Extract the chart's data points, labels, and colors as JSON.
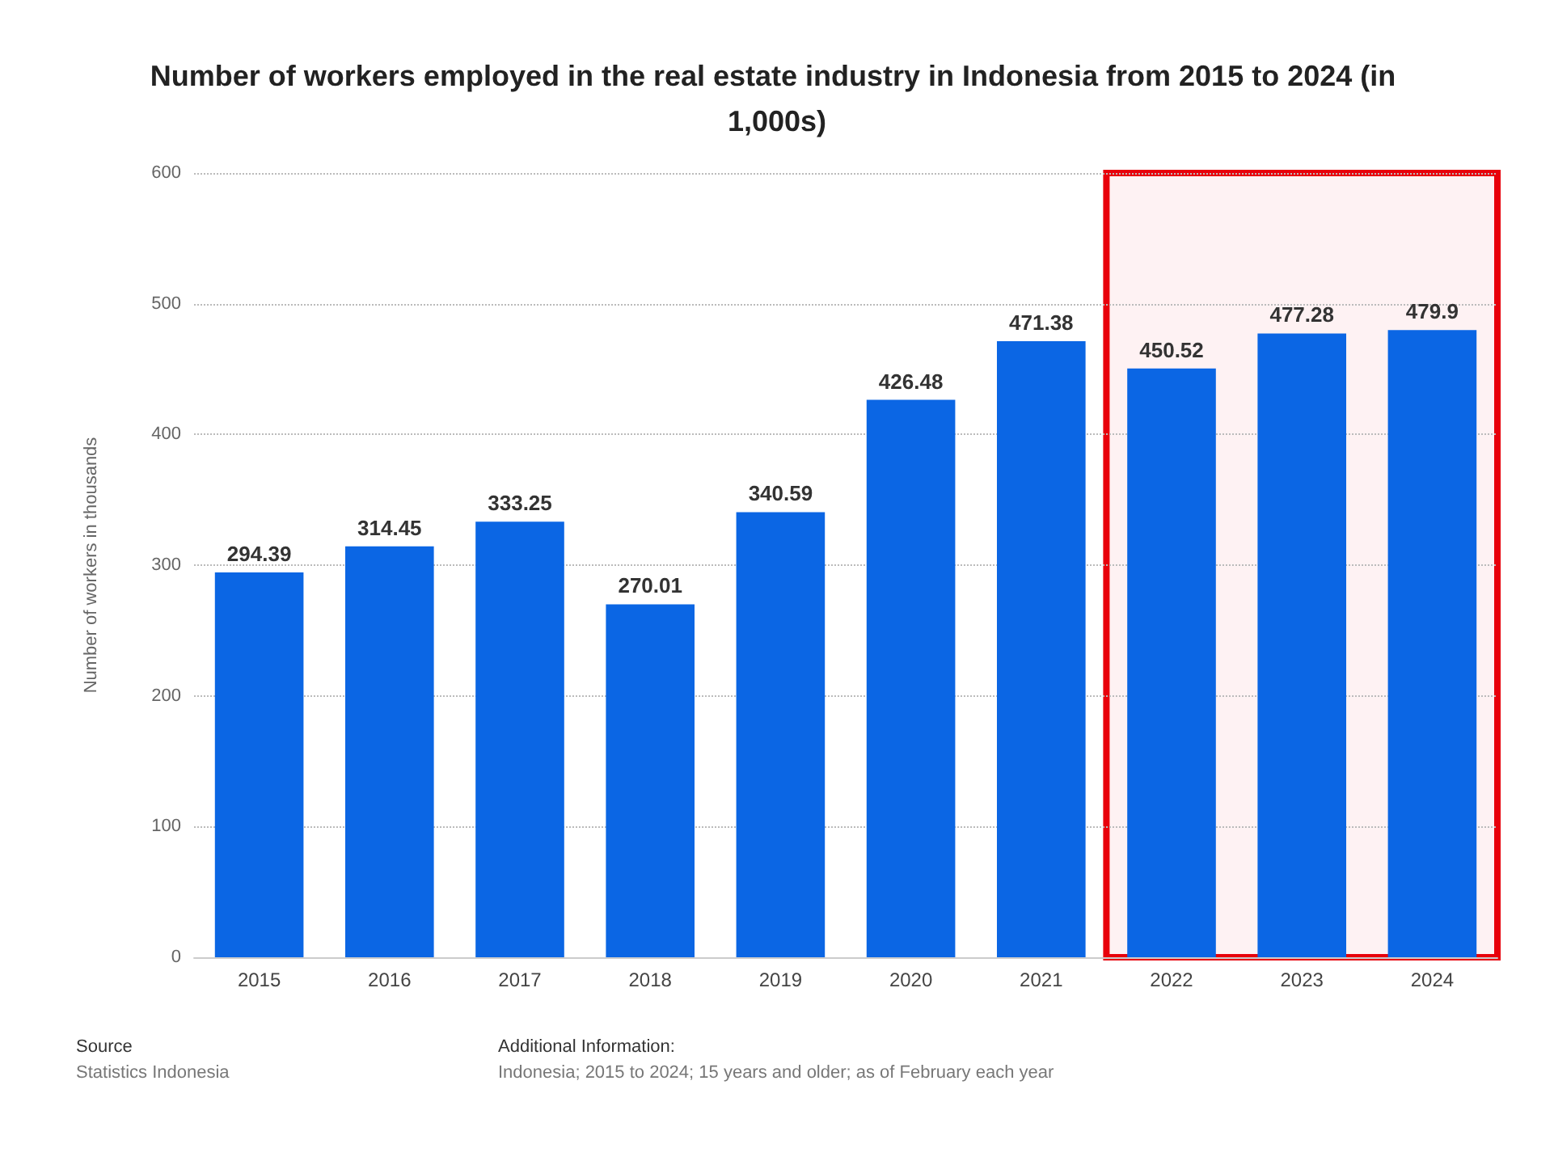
{
  "chart_data": {
    "type": "bar",
    "title": "Number of workers employed in the real estate industry in Indonesia from 2015 to 2024 (in 1,000s)",
    "ylabel": "Number of workers in thousands",
    "categories": [
      "2015",
      "2016",
      "2017",
      "2018",
      "2019",
      "2020",
      "2021",
      "2022",
      "2023",
      "2024"
    ],
    "values": [
      294.39,
      314.45,
      333.25,
      270.01,
      340.59,
      426.48,
      471.38,
      450.52,
      477.28,
      479.9
    ],
    "color": "#0b66e4",
    "ylim": [
      0,
      600
    ],
    "yticks": [
      0,
      100,
      200,
      300,
      400,
      500,
      600
    ],
    "grid": "y",
    "data_labels": true,
    "bands": [
      {
        "axis": "x",
        "from": "2022",
        "to": "2024",
        "color": "#e8000b"
      }
    ],
    "annotations": [
      "Source",
      "Statistics Indonesia",
      "Additional Information:",
      "Indonesia; 2015 to 2024; 15 years and older; as of February each year"
    ]
  }
}
